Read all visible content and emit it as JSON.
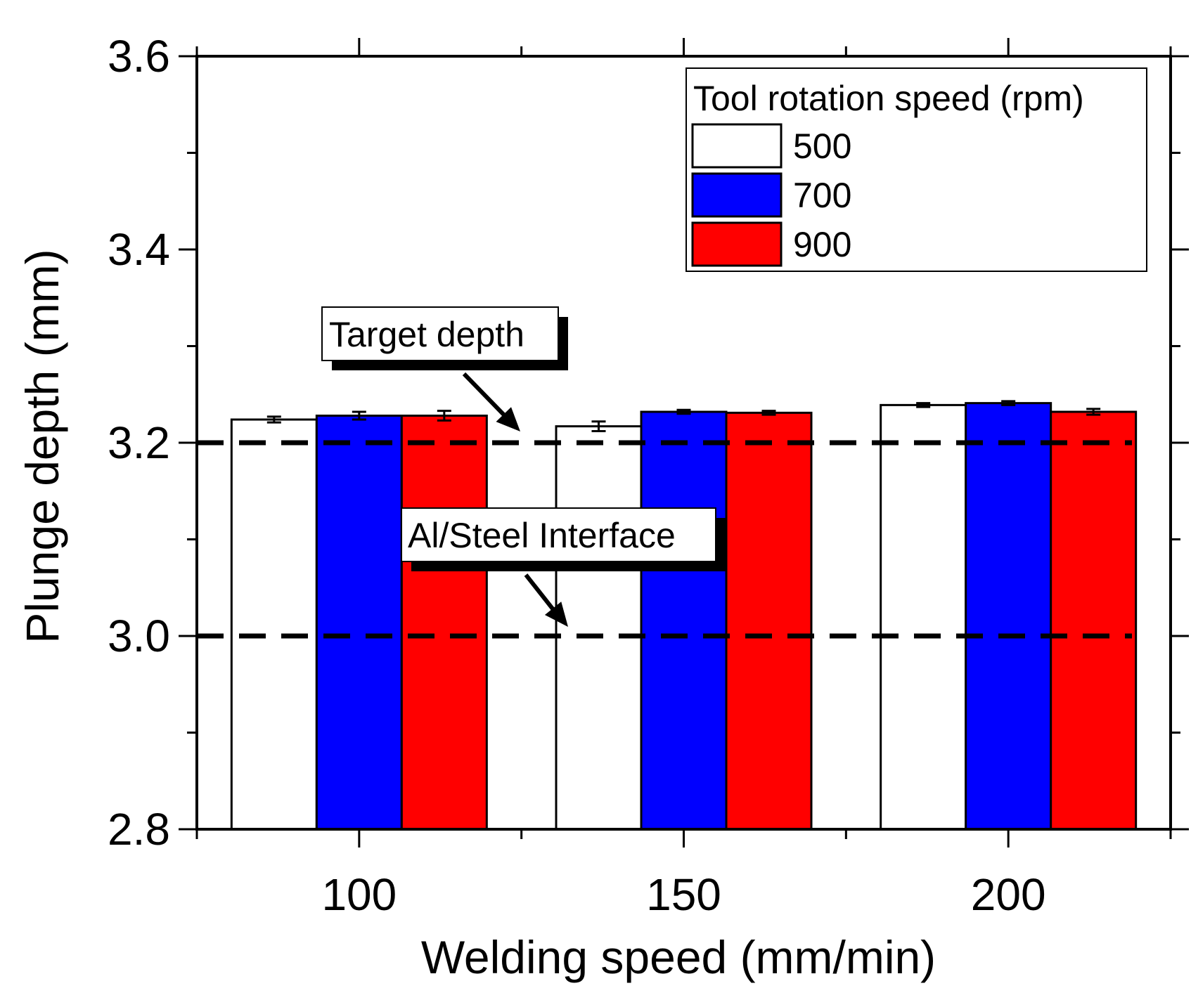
{
  "chart_data": {
    "type": "bar",
    "title": "",
    "xlabel": "Welding speed (mm/min)",
    "ylabel": "Plunge depth (mm)",
    "categories": [
      "100",
      "150",
      "200"
    ],
    "ylim": [
      2.8,
      3.6
    ],
    "yticks": [
      "2.8",
      "3.0",
      "3.2",
      "3.4",
      "3.6"
    ],
    "legend_title": "Tool rotation speed (rpm)",
    "legend_position": "top-right",
    "series": [
      {
        "name": "500",
        "color": "#ffffff",
        "values": [
          3.224,
          3.217,
          3.239
        ],
        "errors": [
          0.003,
          0.005,
          0.002
        ]
      },
      {
        "name": "700",
        "color": "#0000ff",
        "values": [
          3.228,
          3.232,
          3.241
        ],
        "errors": [
          0.004,
          0.002,
          0.002
        ]
      },
      {
        "name": "900",
        "color": "#ff0000",
        "values": [
          3.228,
          3.231,
          3.232
        ],
        "errors": [
          0.005,
          0.002,
          0.003
        ]
      }
    ],
    "reference_lines": [
      {
        "y": 3.2,
        "label": "Target depth"
      },
      {
        "y": 3.0,
        "label": "Al/Steel Interface"
      }
    ]
  }
}
